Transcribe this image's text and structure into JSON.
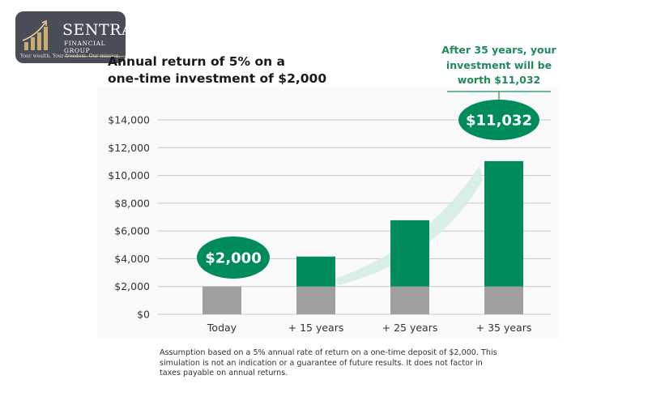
{
  "logo": {
    "brand": "SENTRA",
    "subtitle": "FINANCIAL GROUP",
    "tagline": "Your wealth. Your freedom. Our mission."
  },
  "title_line1": "Annual return of 5% on a",
  "title_line2": "one-time investment of $2,000",
  "annotation": {
    "line1": "After 35 years, your",
    "line2": "investment will be",
    "line3": "worth $11,032"
  },
  "footnote": "Assumption based on a 5% annual rate of return on a one-time deposit of $2,000. This simulation is not an indication or a guarantee of future results. It does not factor in taxes payable on annual returns.",
  "chart_data": {
    "type": "bar",
    "stacked": true,
    "categories": [
      "Today",
      "+ 15 years",
      "+ 25 years",
      "+ 35 years"
    ],
    "series": [
      {
        "role": "principal",
        "color": "#a0a0a3",
        "values": [
          2000,
          2000,
          2000,
          2000
        ]
      },
      {
        "role": "growth",
        "color": "#008c5a",
        "values": [
          0,
          2158,
          4773,
          9032
        ]
      }
    ],
    "totals": [
      2000,
      4158,
      6773,
      11032
    ],
    "ylim": [
      0,
      14000
    ],
    "yticks": [
      0,
      2000,
      4000,
      6000,
      8000,
      10000,
      12000,
      14000
    ],
    "ytick_labels": [
      "$0",
      "$2,000",
      "$4,000",
      "$6,000",
      "$8,000",
      "$10,000",
      "$12,000",
      "$14,000"
    ],
    "grid": true,
    "callouts": [
      {
        "category": "Today",
        "label": "$2,000"
      },
      {
        "category": "+ 35 years",
        "label": "$11,032"
      }
    ],
    "accent_color": "#008c5a",
    "trend_band_color": "#d6ede2"
  }
}
